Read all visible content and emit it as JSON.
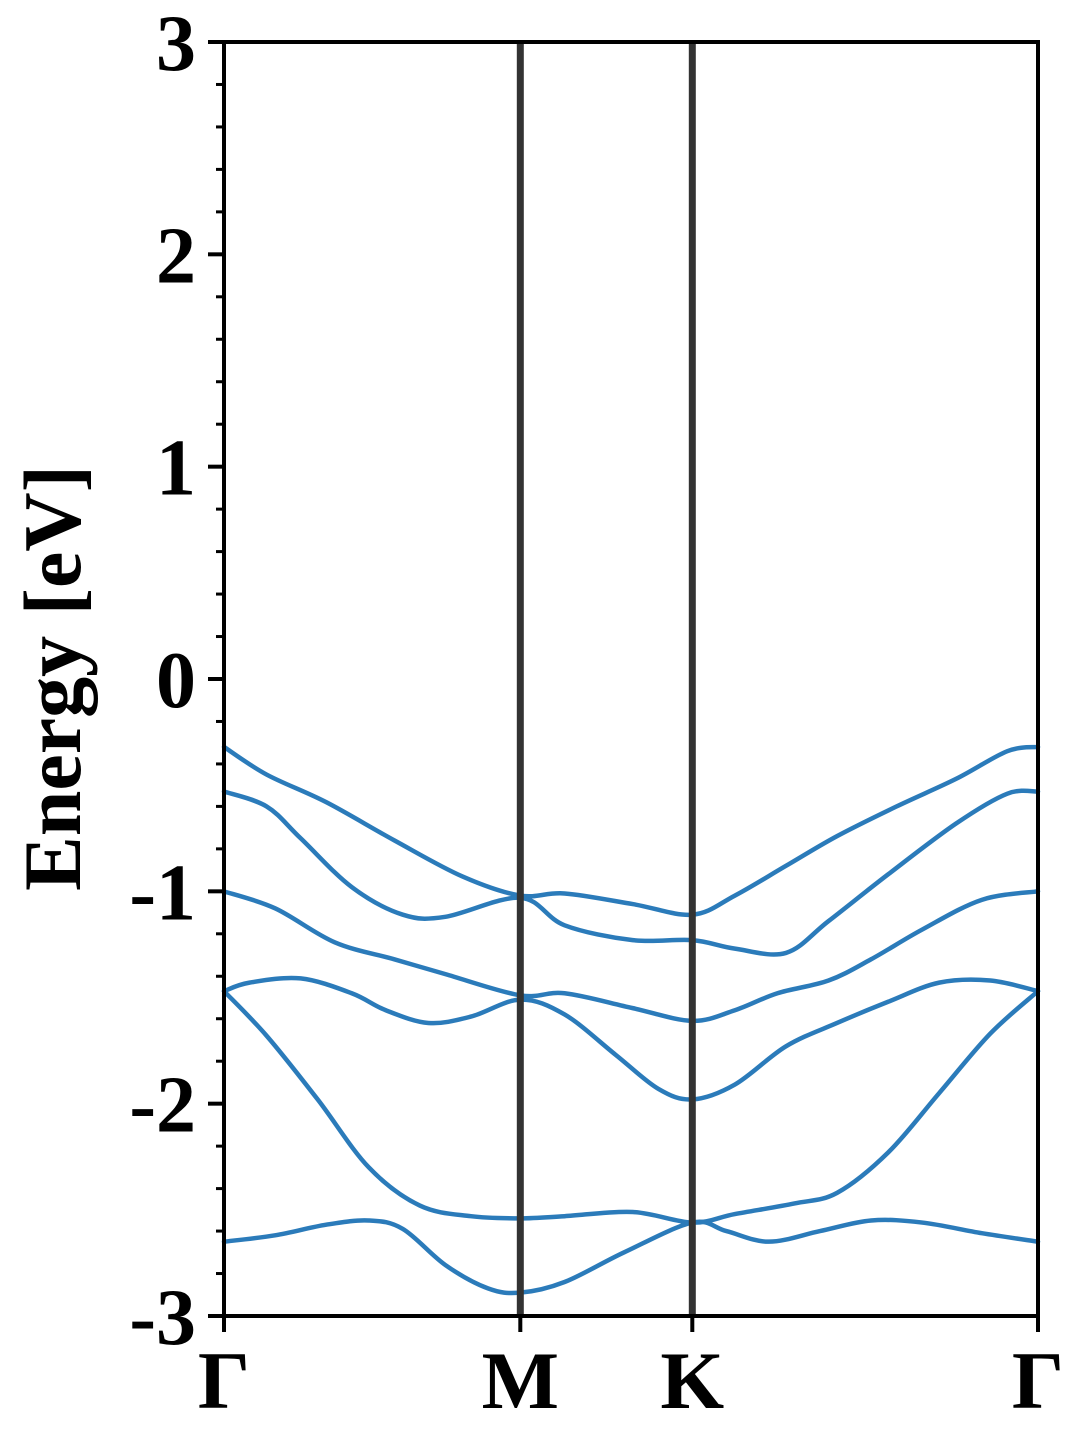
{
  "chart_data": {
    "type": "line",
    "title": "",
    "xlabel": "",
    "ylabel": "Energy [eV]",
    "ylim": [
      -3,
      3
    ],
    "xlim": [
      0,
      4.78
    ],
    "y_ticks": [
      -3,
      -2,
      -1,
      0,
      1,
      2,
      3
    ],
    "y_minor_step": 0.2,
    "high_symmetry_points": [
      {
        "label": "Γ",
        "x": 0
      },
      {
        "label": "M",
        "x": 1.74
      },
      {
        "label": "K",
        "x": 2.75
      },
      {
        "label": "Γ",
        "x": 4.78
      }
    ],
    "colors": {
      "bands": "#2b7bba",
      "divider": "#333333",
      "axes": "#000000"
    },
    "series": [
      {
        "x": [
          0,
          0.25,
          0.6,
          1.0,
          1.4,
          1.74,
          2.0,
          2.4,
          2.75,
          3.0,
          3.3,
          3.6,
          3.95,
          4.3,
          4.6,
          4.78
        ],
        "values": [
          -0.32,
          -0.45,
          -0.58,
          -0.76,
          -0.93,
          -1.02,
          -1.01,
          -1.06,
          -1.11,
          -1.02,
          -0.88,
          -0.74,
          -0.6,
          -0.47,
          -0.34,
          -0.32
        ]
      },
      {
        "x": [
          0,
          0.25,
          0.45,
          0.75,
          1.05,
          1.3,
          1.74,
          2.0,
          2.4,
          2.75,
          3.0,
          3.3,
          3.55,
          3.9,
          4.3,
          4.6,
          4.78
        ],
        "values": [
          -0.53,
          -0.6,
          -0.75,
          -0.98,
          -1.11,
          -1.12,
          -1.03,
          -1.16,
          -1.23,
          -1.23,
          -1.27,
          -1.29,
          -1.14,
          -0.92,
          -0.68,
          -0.54,
          -0.53
        ]
      },
      {
        "x": [
          0,
          0.3,
          0.65,
          1.0,
          1.3,
          1.74,
          2.0,
          2.4,
          2.75,
          3.0,
          3.25,
          3.55,
          3.8,
          4.1,
          4.45,
          4.78
        ],
        "values": [
          -1.0,
          -1.08,
          -1.24,
          -1.32,
          -1.39,
          -1.49,
          -1.48,
          -1.55,
          -1.61,
          -1.56,
          -1.48,
          -1.42,
          -1.32,
          -1.18,
          -1.04,
          -1.0
        ]
      },
      {
        "x": [
          0,
          0.15,
          0.45,
          0.75,
          0.95,
          1.2,
          1.45,
          1.74,
          2.0,
          2.3,
          2.55,
          2.75,
          3.0,
          3.3,
          3.6,
          3.9,
          4.2,
          4.5,
          4.78
        ],
        "values": [
          -1.47,
          -1.43,
          -1.41,
          -1.48,
          -1.56,
          -1.62,
          -1.59,
          -1.51,
          -1.58,
          -1.77,
          -1.93,
          -1.98,
          -1.91,
          -1.73,
          -1.62,
          -1.52,
          -1.43,
          -1.42,
          -1.47
        ]
      },
      {
        "x": [
          0,
          0.25,
          0.55,
          0.85,
          1.15,
          1.45,
          1.74,
          2.0,
          2.4,
          2.75,
          3.0,
          3.35,
          3.6,
          3.9,
          4.2,
          4.5,
          4.78
        ],
        "values": [
          -1.47,
          -1.68,
          -1.98,
          -2.3,
          -2.48,
          -2.53,
          -2.54,
          -2.53,
          -2.51,
          -2.56,
          -2.52,
          -2.47,
          -2.42,
          -2.23,
          -1.95,
          -1.67,
          -1.47
        ]
      },
      {
        "x": [
          0,
          0.3,
          0.6,
          0.85,
          1.05,
          1.3,
          1.55,
          1.74,
          2.0,
          2.35,
          2.75,
          2.95,
          3.2,
          3.5,
          3.8,
          4.1,
          4.45,
          4.78
        ],
        "values": [
          -2.65,
          -2.62,
          -2.57,
          -2.55,
          -2.59,
          -2.76,
          -2.87,
          -2.89,
          -2.84,
          -2.7,
          -2.56,
          -2.6,
          -2.65,
          -2.6,
          -2.55,
          -2.56,
          -2.61,
          -2.65
        ]
      }
    ]
  }
}
